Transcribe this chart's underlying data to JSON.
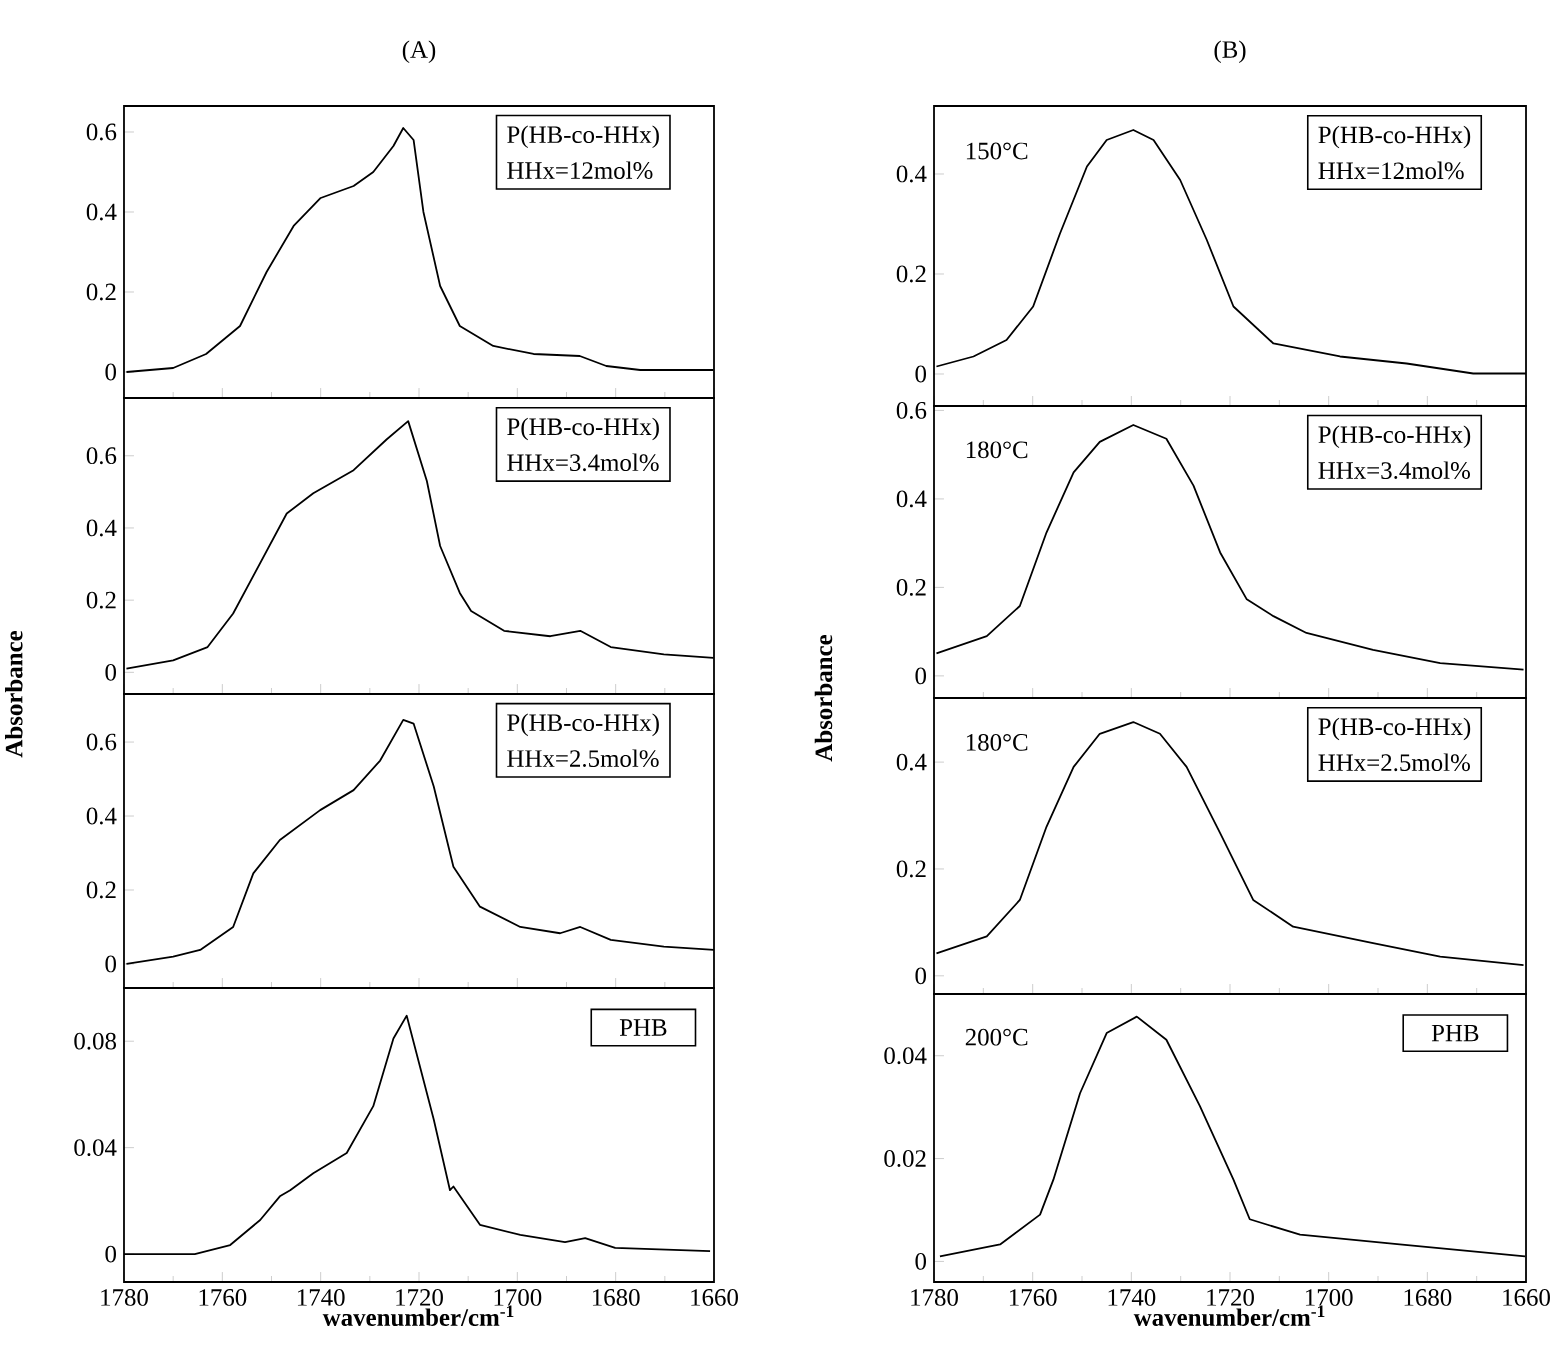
{
  "chart_data": [
    {
      "type": "line",
      "title": "(A)",
      "color": "#000000",
      "xlim": [
        1780,
        1660
      ],
      "xticks": [
        1780,
        1760,
        1740,
        1720,
        1700,
        1680,
        1660
      ],
      "ylim": [
        -0.065,
        0.665
      ],
      "yticks": [
        0,
        0.2,
        0.4,
        0.6
      ],
      "tick_labels": "y",
      "x": [
        1779.5,
        1770,
        1763.3,
        1756.4,
        1751,
        1745.5,
        1740,
        1733.3,
        1729.3,
        1725.2,
        1723.2,
        1721.1,
        1719.1,
        1715.7,
        1711.7,
        1704.9,
        1696.7,
        1687.3,
        1681.9,
        1675,
        1660.1
      ],
      "values": [
        0,
        0.01,
        0.045,
        0.115,
        0.25,
        0.365,
        0.435,
        0.465,
        0.5,
        0.565,
        0.61,
        0.58,
        0.4,
        0.215,
        0.115,
        0.065,
        0.045,
        0.04,
        0.015,
        0.005,
        0.005
      ],
      "annotations": [
        "P(HB-co-HHx)",
        "HHx=12mol%"
      ]
    },
    {
      "type": "line",
      "ylabel": "Absorbance",
      "color": "#000000",
      "xlim": [
        1780,
        1660
      ],
      "xticks": [
        1780,
        1760,
        1740,
        1720,
        1700,
        1680,
        1660
      ],
      "ylim": [
        -0.06,
        0.76
      ],
      "yticks": [
        0,
        0.2,
        0.4,
        0.6
      ],
      "tick_labels": "y",
      "x": [
        1779.5,
        1770,
        1763,
        1757.8,
        1746.9,
        1741.5,
        1733.3,
        1726.6,
        1722.2,
        1718.4,
        1715.7,
        1711.7,
        1709.4,
        1702.7,
        1693.3,
        1687.2,
        1681,
        1670.2,
        1660.1
      ],
      "values": [
        0.01,
        0.033,
        0.07,
        0.163,
        0.44,
        0.496,
        0.56,
        0.645,
        0.696,
        0.53,
        0.35,
        0.22,
        0.17,
        0.115,
        0.1,
        0.115,
        0.07,
        0.05,
        0.04
      ],
      "annotations": [
        "P(HB-co-HHx)",
        "HHx=3.4mol%"
      ]
    },
    {
      "type": "line",
      "color": "#000000",
      "xlim": [
        1780,
        1660
      ],
      "xticks": [
        1780,
        1760,
        1740,
        1720,
        1700,
        1680,
        1660
      ],
      "ylim": [
        -0.065,
        0.73
      ],
      "yticks": [
        0,
        0.2,
        0.4,
        0.6
      ],
      "tick_labels": "y",
      "x": [
        1779.5,
        1770,
        1764.5,
        1757.8,
        1753.7,
        1748.3,
        1740.1,
        1733.3,
        1727.9,
        1723.2,
        1721.1,
        1717,
        1713,
        1707.6,
        1699.4,
        1691.3,
        1687.2,
        1681,
        1670.2,
        1660
      ],
      "values": [
        0,
        0.02,
        0.038,
        0.1,
        0.245,
        0.335,
        0.416,
        0.47,
        0.55,
        0.66,
        0.65,
        0.48,
        0.263,
        0.155,
        0.1,
        0.083,
        0.1,
        0.065,
        0.047,
        0.038
      ],
      "annotations": [
        "P(HB-co-HHx)",
        "HHx=2.5mol%"
      ]
    },
    {
      "type": "line",
      "xlabel": "**wavenumber/cm$^{-1}$**",
      "color": "#000000",
      "xlim": [
        1780,
        1660
      ],
      "xticks": [
        1780,
        1760,
        1740,
        1720,
        1700,
        1680,
        1660
      ],
      "ylim": [
        -0.0105,
        0.1
      ],
      "yticks": [
        0,
        0.04,
        0.08
      ],
      "x": [
        1780,
        1765.6,
        1758.4,
        1752.3,
        1748.3,
        1746.2,
        1741.5,
        1734.7,
        1729.3,
        1725.2,
        1722.5,
        1717,
        1713.7,
        1713,
        1707.6,
        1699.4,
        1690.3,
        1686.2,
        1680.1,
        1660.8
      ],
      "values": [
        0,
        0,
        0.0034,
        0.0128,
        0.0217,
        0.024,
        0.0304,
        0.038,
        0.0556,
        0.081,
        0.0896,
        0.0506,
        0.024,
        0.0254,
        0.011,
        0.0072,
        0.0045,
        0.006,
        0.0023,
        0.0011
      ],
      "annotations": [
        "PHB"
      ]
    },
    {
      "type": "line",
      "title": "(B)",
      "color": "#000000",
      "xlim": [
        1780,
        1660
      ],
      "xticks": [
        1780,
        1760,
        1740,
        1720,
        1700,
        1680,
        1660
      ],
      "ylim": [
        -0.064,
        0.536
      ],
      "yticks": [
        0,
        0.2,
        0.4
      ],
      "tick_labels": "y",
      "x": [
        1779.5,
        1772,
        1765.3,
        1759.9,
        1754.5,
        1749,
        1745,
        1739.6,
        1735.5,
        1730.1,
        1724.7,
        1719.3,
        1711.2,
        1697.7,
        1684.2,
        1670.7,
        1660
      ],
      "values": [
        0.015,
        0.035,
        0.068,
        0.135,
        0.28,
        0.415,
        0.468,
        0.488,
        0.468,
        0.388,
        0.268,
        0.135,
        0.061,
        0.035,
        0.021,
        0.001,
        0.001
      ],
      "annotations": [
        "150°C",
        "P(HB-co-HHx)",
        "HHx=12mol%"
      ]
    },
    {
      "type": "line",
      "ylabel": "Absorbance",
      "color": "#000000",
      "xlim": [
        1780,
        1660
      ],
      "xticks": [
        1780,
        1760,
        1740,
        1720,
        1700,
        1680,
        1660
      ],
      "ylim": [
        -0.05,
        0.61
      ],
      "yticks": [
        0,
        0.2,
        0.4,
        0.6
      ],
      "tick_labels": "y",
      "x": [
        1779.5,
        1769.3,
        1762.6,
        1757.2,
        1751.7,
        1746.4,
        1739.6,
        1732.9,
        1727.4,
        1722,
        1716.6,
        1711.2,
        1704.5,
        1691,
        1677.4,
        1660.5
      ],
      "values": [
        0.051,
        0.09,
        0.158,
        0.324,
        0.46,
        0.529,
        0.567,
        0.536,
        0.43,
        0.279,
        0.173,
        0.135,
        0.097,
        0.059,
        0.029,
        0.014
      ],
      "annotations": [
        "180°C",
        "P(HB-co-HHx)",
        "HHx=3.4mol%"
      ]
    },
    {
      "type": "line",
      "color": "#000000",
      "xlim": [
        1780,
        1660
      ],
      "xticks": [
        1780,
        1760,
        1740,
        1720,
        1700,
        1680,
        1660
      ],
      "ylim": [
        -0.034,
        0.52
      ],
      "yticks": [
        0,
        0.2,
        0.4
      ],
      "tick_labels": "y",
      "x": [
        1779.5,
        1769.3,
        1762.6,
        1757.2,
        1751.7,
        1746.4,
        1739.6,
        1734.2,
        1728.8,
        1722,
        1715.3,
        1707.2,
        1691,
        1677.4,
        1660.5
      ],
      "values": [
        0.042,
        0.074,
        0.142,
        0.279,
        0.391,
        0.453,
        0.475,
        0.453,
        0.391,
        0.267,
        0.142,
        0.092,
        0.061,
        0.036,
        0.02
      ],
      "annotations": [
        "180°C",
        "P(HB-co-HHx)",
        "HHx=2.5mol%"
      ]
    },
    {
      "type": "line",
      "xlabel": "**wavenumber/cm$^{-1}$**",
      "color": "#000000",
      "xlim": [
        1780,
        1660
      ],
      "xticks": [
        1780,
        1760,
        1740,
        1720,
        1700,
        1680,
        1660
      ],
      "ylim": [
        -0.004,
        0.052
      ],
      "yticks": [
        0,
        0.02,
        0.04
      ],
      "x": [
        1778.8,
        1766.6,
        1758.5,
        1755.8,
        1750.4,
        1745,
        1738.9,
        1732.9,
        1726.1,
        1719.3,
        1716,
        1705.8,
        1685.6,
        1660.2
      ],
      "values": [
        0.001,
        0.0033,
        0.0091,
        0.0159,
        0.0327,
        0.0444,
        0.0476,
        0.0431,
        0.0302,
        0.0159,
        0.0082,
        0.0052,
        0.0033,
        0.001
      ],
      "annotations": [
        "200°C",
        "PHB"
      ]
    }
  ]
}
